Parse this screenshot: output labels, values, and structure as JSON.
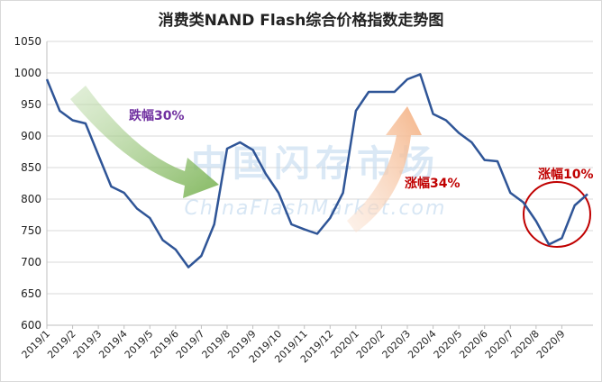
{
  "chart_data": {
    "type": "line",
    "title": "消费类NAND Flash综合价格指数走势图",
    "categories": [
      "2019/1",
      null,
      "2019/2",
      null,
      "2019/3",
      null,
      "2019/4",
      null,
      "2019/5",
      null,
      "2019/6",
      null,
      "2019/7",
      null,
      "2019/8",
      null,
      "2019/9",
      null,
      "2019/10",
      null,
      "2019/11",
      null,
      "2019/12",
      null,
      "2020/1",
      null,
      "2020/2",
      null,
      "2020/3",
      null,
      "2020/4",
      null,
      "2020/5",
      null,
      "2020/6",
      null,
      "2020/7",
      null,
      "2020/8",
      null,
      "2020/9",
      null,
      null
    ],
    "series": [
      {
        "name": "消费类NAND Flash综合价格指数",
        "color": "#2f5597",
        "values": [
          990,
          940,
          925,
          920,
          870,
          820,
          810,
          785,
          770,
          735,
          720,
          692,
          710,
          760,
          880,
          890,
          878,
          840,
          810,
          760,
          752,
          745,
          770,
          810,
          940,
          970,
          970,
          970,
          990,
          998,
          935,
          925,
          905,
          890,
          862,
          860,
          810,
          795,
          765,
          728,
          738,
          790,
          808
        ]
      }
    ],
    "ylim": [
      600,
      1050
    ],
    "yticks": [
      600,
      650,
      700,
      750,
      800,
      850,
      900,
      950,
      1000,
      1050
    ],
    "grid": true,
    "annotations": [
      "跌幅30%",
      "涨幅34%",
      "涨幅10%"
    ],
    "watermark": [
      "中国闪存市场",
      "ChinaFlashMarket.com"
    ]
  }
}
